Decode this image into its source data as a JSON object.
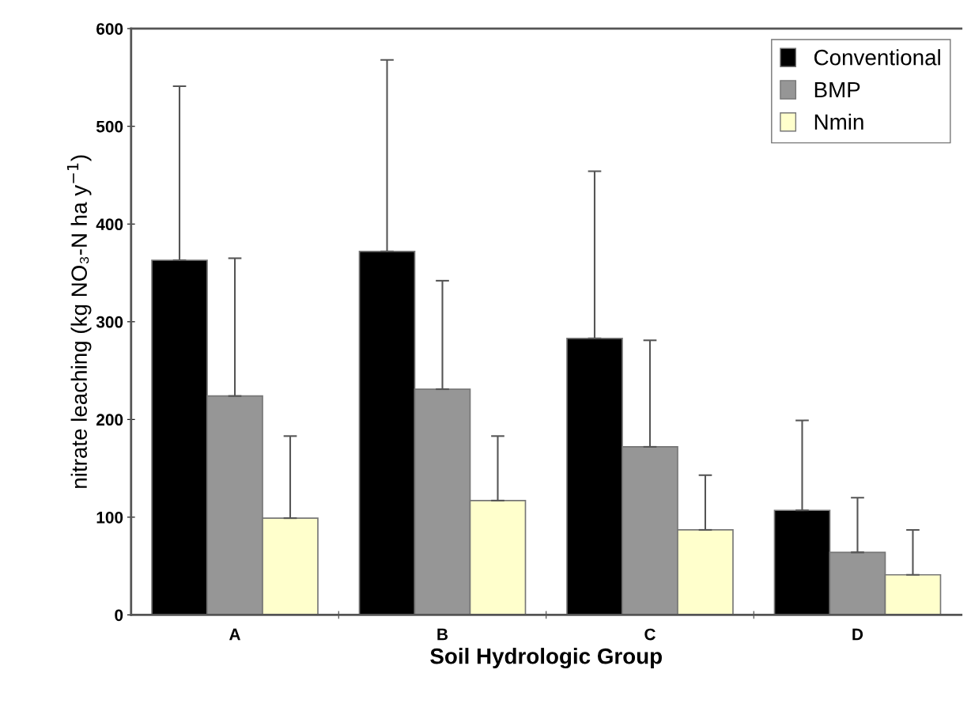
{
  "chart_data": {
    "type": "bar",
    "xlabel": "Soil Hydrologic Group",
    "ylabel": "nitrate leaching (kg NO₃-N ha y$^{−1}$)",
    "categories": [
      "A",
      "B",
      "C",
      "D"
    ],
    "series": [
      {
        "name": "Conventional",
        "color": "#000000",
        "values": [
          363,
          372,
          283,
          107
        ],
        "errors": [
          [
            363,
            541
          ],
          [
            372,
            568
          ],
          [
            283,
            454
          ],
          [
            107,
            199
          ]
        ]
      },
      {
        "name": "BMP",
        "color": "#969696",
        "values": [
          224,
          231,
          172,
          64
        ],
        "errors": [
          [
            224,
            365
          ],
          [
            231,
            342
          ],
          [
            172,
            281
          ],
          [
            64,
            120
          ]
        ]
      },
      {
        "name": "Nmin",
        "color": "#ffffcc",
        "values": [
          99,
          117,
          87,
          41
        ],
        "errors": [
          [
            99,
            183
          ],
          [
            117,
            183
          ],
          [
            87,
            143
          ],
          [
            41,
            87
          ]
        ]
      }
    ],
    "ylim": [
      0,
      600
    ],
    "yticks": [
      0,
      100,
      200,
      300,
      400,
      500,
      600
    ],
    "grid": false,
    "legend": "top right"
  }
}
